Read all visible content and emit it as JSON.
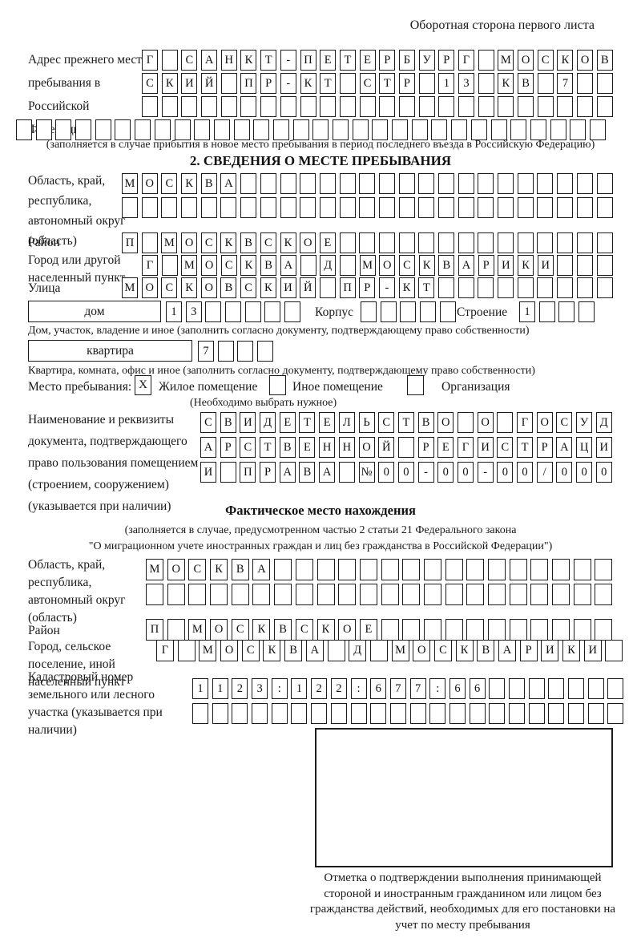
{
  "page": {
    "corner_note": "Оборотная сторона первого листа"
  },
  "prev_address": {
    "label": "Адрес прежнего места пребывания в Российской Федерации",
    "rows": [
      "Г САНКТ-ПЕТЕРБУРГ МОСКОВ",
      "СКИЙ ПР-КТ СТР 13 КВ 7",
      "",
      ""
    ],
    "note": "(заполняется в случае прибытия в новое место пребывания в период последнего въезда в Российскую Федерацию)"
  },
  "section2": {
    "title": "2. СВЕДЕНИЯ О МЕСТЕ ПРЕБЫВАНИЯ",
    "region": {
      "label": "Область, край, республика, автономный округ (область)",
      "rows": [
        "МОСКВА",
        ""
      ]
    },
    "district": {
      "label": "Район",
      "value": "П МОСКВСКОЕ"
    },
    "city": {
      "label": "Город или другой населенный пункт",
      "value": "Г МОСКВА Д МОСКВАРИКИ"
    },
    "street": {
      "label": "Улица",
      "value": "МОСКОВСКИЙ ПР-КТ"
    },
    "house": {
      "label": "дом",
      "value": "13",
      "korpus_label": "Корпус",
      "korpus_value": "",
      "stroenie_label": "Строение",
      "stroenie_value": "1",
      "note": "Дом, участок, владение и иное (заполнить согласно документу, подтверждающему право собственности)"
    },
    "apartment": {
      "label": "квартира",
      "value": "7",
      "note": "Квартира, комната, офис и иное (заполнить согласно документу, подтверждающему право собственности)"
    },
    "stay_type": {
      "label": "Место пребывания:",
      "options": [
        {
          "label": "Жилое помещение",
          "checked": "X"
        },
        {
          "label": "Иное помещение",
          "checked": ""
        },
        {
          "label": "Организация",
          "checked": ""
        }
      ],
      "note": "(Необходимо выбрать нужное)"
    },
    "document": {
      "label": "Наименование и реквизиты документа, подтверждающего право пользования помещением (строением, сооружением) (указывается при наличии)",
      "rows": [
        "СВИДЕТЕЛЬСТВО О ГОСУД",
        "АРСТВЕННОЙ РЕГИСТРАЦИ",
        "И ПРАВА №00-00-00/000"
      ]
    }
  },
  "actual_location": {
    "title": "Фактическое место нахождения",
    "note_line1": "(заполняется в случае, предусмотренном частью 2 статьи 21 Федерального закона",
    "note_line2": "\"О миграционном учете иностранных граждан и лиц без гражданства в Российской Федерации\")",
    "region": {
      "label": "Область, край, республика, автономный округ (область)",
      "rows": [
        "МОСКВА",
        ""
      ]
    },
    "district": {
      "label": "Район",
      "value": "П МОСКВСКОЕ"
    },
    "city": {
      "label": "Город, сельское поселение, иной населенный пункт",
      "value": "Г МОСКВА Д МОСКВАРИКИ"
    },
    "cadastral": {
      "label": "Кадастровый номер земельного или лесного участка (указывается при наличии)",
      "rows": [
        "1123:122:677:66",
        ""
      ]
    }
  },
  "confirmation": {
    "caption": "Отметка о подтверждении выполнения принимающей стороной и иностранным гражданином или лицом без гражданства действий, необходимых для его постановки на учет по месту пребывания"
  }
}
